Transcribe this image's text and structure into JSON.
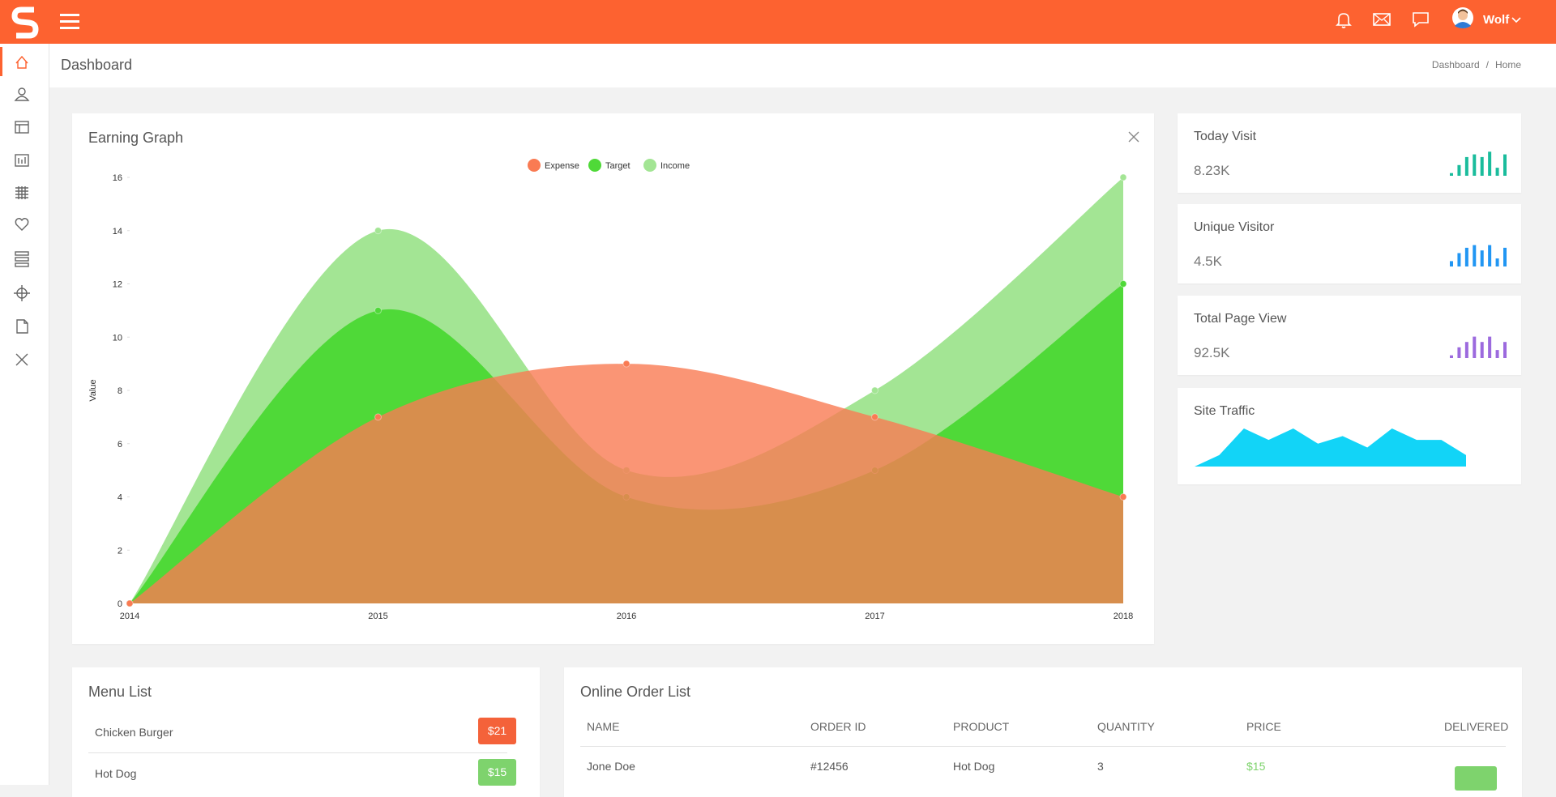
{
  "topbar": {
    "user": "Wolf"
  },
  "page_header": {
    "title": "Dashboard",
    "breadcrumb": [
      "Dashboard",
      "Home"
    ],
    "separator": "/"
  },
  "chart_data": {
    "type": "area",
    "title": "Earning Graph",
    "y_label": "Value",
    "categories": [
      "2014",
      "2015",
      "2016",
      "2017",
      "2018"
    ],
    "series": [
      {
        "name": "Expense",
        "color": "#f97b53",
        "values": [
          0,
          7,
          9,
          7,
          4
        ]
      },
      {
        "name": "Target",
        "color": "#4fd938",
        "values": [
          0,
          11,
          4,
          5,
          12
        ]
      },
      {
        "name": "Income",
        "color": "#a3e594",
        "values": [
          0,
          14,
          5,
          8,
          16
        ]
      }
    ],
    "ylim": [
      0,
      16
    ],
    "yticks": [
      0,
      2,
      4,
      6,
      8,
      10,
      12,
      14,
      16
    ],
    "legend_position": "top",
    "smooth": true
  },
  "stats": [
    {
      "title": "Today Visit",
      "value": "8.23K",
      "type": "bar",
      "color": "#1abc9c",
      "values": [
        1,
        4,
        7,
        8,
        7,
        9,
        3,
        8
      ],
      "ylim": [
        0,
        10
      ]
    },
    {
      "title": "Unique Visitor",
      "value": "4.5K",
      "type": "bar",
      "color": "#2196f3",
      "values": [
        2,
        5,
        7,
        8,
        6,
        8,
        3,
        7
      ],
      "ylim": [
        0,
        10
      ]
    },
    {
      "title": "Total Page View",
      "value": "92.5K",
      "type": "bar",
      "color": "#9c6ade",
      "values": [
        1,
        4,
        6,
        8,
        6,
        8,
        3,
        6
      ],
      "ylim": [
        0,
        10
      ]
    },
    {
      "title": "Site Traffic",
      "type": "area",
      "color": "#12d4f7",
      "values": [
        0,
        3,
        10,
        7,
        10,
        6,
        8,
        5,
        10,
        7,
        7,
        3
      ],
      "ylim": [
        0,
        10
      ]
    }
  ],
  "menu_list": {
    "title": "Menu List",
    "items": [
      {
        "name": "Chicken Burger",
        "price": "$21",
        "color": "#f4623a"
      },
      {
        "name": "Hot Dog",
        "price": "$15",
        "color": "#7ed36d"
      }
    ]
  },
  "order_list": {
    "title": "Online Order List",
    "columns": [
      "NAME",
      "ORDER ID",
      "PRODUCT",
      "QUANTITY",
      "PRICE",
      "DELIVERED"
    ],
    "rows": [
      [
        "Jone Doe",
        "#12456",
        "Hot Dog",
        "3",
        "$15"
      ]
    ]
  }
}
